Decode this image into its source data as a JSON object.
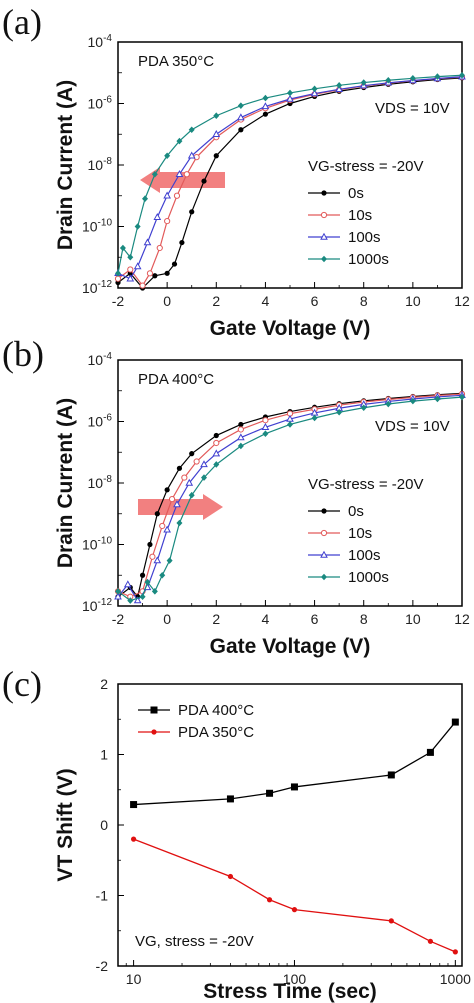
{
  "chart_data": [
    {
      "panel": "(a)",
      "type": "line",
      "ylog": true,
      "xlabel": "Gate Voltage (V)",
      "ylabel": "Drain Current (A)",
      "xlim": [
        -2,
        12
      ],
      "ylim": [
        1e-12,
        0.0001
      ],
      "xticks": [
        "-2",
        "0",
        "2",
        "4",
        "6",
        "8",
        "10",
        "12"
      ],
      "yticks": [
        "10-12",
        "10-10",
        "10-8",
        "10-6",
        "10-4"
      ],
      "annotations": {
        "pda": "PDA 350°C",
        "vds": "VDS = 10V",
        "legend_title": "VG-stress = -20V"
      },
      "arrow_direction": "left",
      "series": [
        {
          "name": "0s",
          "color": "#000000",
          "marker": "circle",
          "x": [
            -2,
            -1.5,
            -1,
            -0.5,
            0,
            0.3,
            0.6,
            1,
            1.5,
            2,
            3,
            4,
            5,
            6,
            7,
            8,
            9,
            10,
            11,
            12
          ],
          "y": [
            1.5e-12,
            3e-12,
            1e-12,
            2.5e-12,
            3e-12,
            6e-12,
            3e-11,
            3e-10,
            3e-09,
            2e-08,
            1.4e-07,
            4.5e-07,
            1e-06,
            1.7e-06,
            2.5e-06,
            3.3e-06,
            4.2e-06,
            5.1e-06,
            6e-06,
            6.8e-06
          ]
        },
        {
          "name": "10s",
          "color": "#e25a5a",
          "marker": "circle-open",
          "x": [
            -2,
            -1.5,
            -1,
            -0.7,
            -0.3,
            0,
            0.4,
            0.8,
            1.2,
            2,
            3,
            4,
            5,
            6,
            7,
            8,
            9,
            10,
            11,
            12
          ],
          "y": [
            2e-12,
            4e-12,
            1.2e-12,
            3e-12,
            2e-11,
            1.5e-10,
            1e-09,
            5e-09,
            1.8e-08,
            8e-08,
            3e-07,
            7e-07,
            1.3e-06,
            2e-06,
            2.8e-06,
            3.7e-06,
            4.6e-06,
            5.5e-06,
            6.4e-06,
            7.2e-06
          ]
        },
        {
          "name": "100s",
          "color": "#4040d0",
          "marker": "triangle-open",
          "x": [
            -2,
            -1.5,
            -1.2,
            -0.8,
            -0.4,
            0,
            0.5,
            1,
            2,
            3,
            4,
            5,
            6,
            7,
            8,
            9,
            10,
            11,
            12
          ],
          "y": [
            3e-12,
            2e-12,
            5e-12,
            3e-11,
            2e-10,
            1e-09,
            5e-09,
            2e-08,
            1e-07,
            3.5e-07,
            8e-07,
            1.4e-06,
            2.1e-06,
            2.9e-06,
            3.8e-06,
            4.7e-06,
            5.6e-06,
            6.5e-06,
            7.4e-06
          ]
        },
        {
          "name": "1000s",
          "color": "#1a8a80",
          "marker": "diamond",
          "x": [
            -2,
            -1.8,
            -1.5,
            -1.2,
            -0.9,
            -0.5,
            0,
            0.5,
            1,
            2,
            3,
            4,
            5,
            6,
            7,
            8,
            9,
            10,
            11,
            12
          ],
          "y": [
            3e-12,
            2e-11,
            1e-11,
            1e-10,
            8e-10,
            5e-09,
            2e-08,
            6e-08,
            1.4e-07,
            4e-07,
            8.5e-07,
            1.5e-06,
            2.2e-06,
            3e-06,
            3.9e-06,
            4.8e-06,
            5.7e-06,
            6.6e-06,
            7.5e-06,
            8.3e-06
          ]
        }
      ]
    },
    {
      "panel": "(b)",
      "type": "line",
      "ylog": true,
      "xlabel": "Gate Voltage (V)",
      "ylabel": "Drain Current (A)",
      "xlim": [
        -2,
        12
      ],
      "ylim": [
        1e-12,
        0.0001
      ],
      "xticks": [
        "-2",
        "0",
        "2",
        "4",
        "6",
        "8",
        "10",
        "12"
      ],
      "yticks": [
        "10-12",
        "10-10",
        "10-8",
        "10-6",
        "10-4"
      ],
      "annotations": {
        "pda": "PDA 400°C",
        "vds": "VDS = 10V",
        "legend_title": "VG-stress = -20V"
      },
      "arrow_direction": "right",
      "series": [
        {
          "name": "0s",
          "color": "#000000",
          "marker": "circle",
          "x": [
            -2,
            -1.5,
            -1.2,
            -1,
            -0.7,
            -0.4,
            0,
            0.5,
            1,
            2,
            3,
            4,
            5,
            6,
            7,
            8,
            9,
            10,
            11,
            12
          ],
          "y": [
            2e-12,
            4e-12,
            2e-12,
            1e-11,
            1e-10,
            1e-09,
            6e-09,
            3e-08,
            9e-08,
            3.5e-07,
            8e-07,
            1.4e-06,
            2.1e-06,
            2.9e-06,
            3.8e-06,
            4.7e-06,
            5.6e-06,
            6.5e-06,
            7.4e-06,
            8.2e-06
          ]
        },
        {
          "name": "10s",
          "color": "#e25a5a",
          "marker": "circle-open",
          "x": [
            -2,
            -1.5,
            -1,
            -0.6,
            -0.2,
            0.2,
            0.7,
            1.2,
            2,
            3,
            4,
            5,
            6,
            7,
            8,
            9,
            10,
            11,
            12
          ],
          "y": [
            3e-12,
            2e-12,
            3e-12,
            4e-11,
            4e-10,
            3e-09,
            1.5e-08,
            5e-08,
            2e-07,
            5.5e-07,
            1.1e-06,
            1.8e-06,
            2.5e-06,
            3.4e-06,
            4.3e-06,
            5.2e-06,
            6.1e-06,
            7e-06,
            7.8e-06
          ]
        },
        {
          "name": "100s",
          "color": "#4040d0",
          "marker": "triangle-open",
          "x": [
            -2,
            -1.6,
            -1.2,
            -0.8,
            -0.4,
            0,
            0.4,
            0.9,
            1.5,
            2,
            3,
            4,
            5,
            6,
            7,
            8,
            9,
            10,
            11,
            12
          ],
          "y": [
            2e-12,
            5e-12,
            1.5e-12,
            4e-12,
            3e-11,
            3e-10,
            2e-09,
            1e-08,
            4e-08,
            9e-08,
            3e-07,
            6.5e-07,
            1.2e-06,
            1.9e-06,
            2.7e-06,
            3.6e-06,
            4.5e-06,
            5.4e-06,
            6.3e-06,
            7.1e-06
          ]
        },
        {
          "name": "1000s",
          "color": "#1a8a80",
          "marker": "diamond",
          "x": [
            -2,
            -1.5,
            -1,
            -0.8,
            -0.5,
            -0.2,
            0.1,
            0.5,
            1,
            1.5,
            2,
            3,
            4,
            5,
            6,
            7,
            8,
            9,
            10,
            11,
            12
          ],
          "y": [
            3e-12,
            1.5e-12,
            2e-12,
            6e-12,
            3e-12,
            1e-11,
            3e-11,
            5e-10,
            4e-09,
            1.5e-08,
            4e-08,
            1.6e-07,
            4e-07,
            8e-07,
            1.3e-06,
            2e-06,
            2.8e-06,
            3.7e-06,
            4.6e-06,
            5.4e-06,
            6.2e-06
          ]
        }
      ]
    },
    {
      "panel": "(c)",
      "type": "line",
      "xlog": true,
      "xlabel": "Stress Time (sec)",
      "ylabel": "VT Shift (V)",
      "xlim": [
        8,
        1100
      ],
      "ylim": [
        -2,
        2
      ],
      "xticks": [
        "10",
        "100",
        "1000"
      ],
      "yticks": [
        "-2",
        "-1",
        "0",
        "1",
        "2"
      ],
      "annotations": {
        "vg": "VG, stress = -20V"
      },
      "series": [
        {
          "name": "PDA 400°C",
          "color": "#000000",
          "marker": "square",
          "x": [
            10,
            40,
            70,
            100,
            400,
            700,
            1000
          ],
          "y": [
            0.29,
            0.37,
            0.45,
            0.54,
            0.71,
            1.03,
            1.46
          ]
        },
        {
          "name": "PDA 350°C",
          "color": "#e01010",
          "marker": "circle",
          "x": [
            10,
            40,
            70,
            100,
            400,
            700,
            1000
          ],
          "y": [
            -0.2,
            -0.73,
            -1.06,
            -1.2,
            -1.36,
            -1.65,
            -1.8
          ]
        }
      ]
    }
  ]
}
